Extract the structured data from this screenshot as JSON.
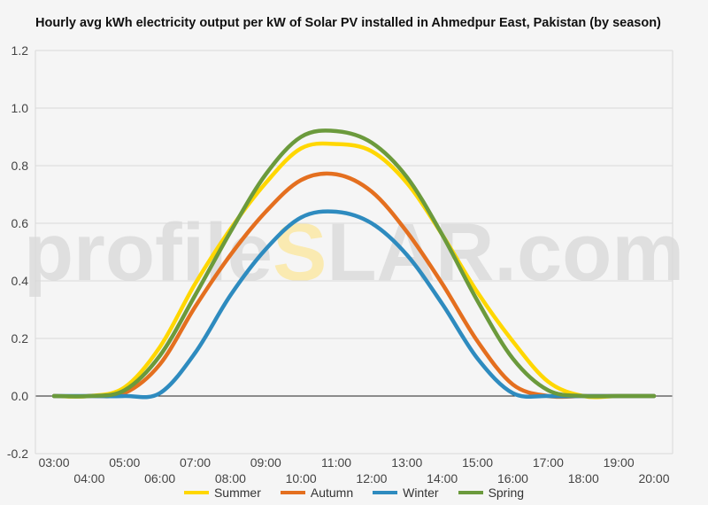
{
  "watermark": {
    "left": "profile",
    "sun_letter": "S",
    "right": "LAR.com"
  },
  "chart_data": {
    "type": "line",
    "title": "Hourly avg kWh electricity output per kW of Solar PV installed in Ahmedpur East, Pakistan (by season)",
    "xlabel": "",
    "ylabel": "",
    "ylim": [
      -0.2,
      1.2
    ],
    "yticks": [
      "-0.2",
      "0.0",
      "0.2",
      "0.4",
      "0.6",
      "0.8",
      "1.0",
      "1.2"
    ],
    "categories": [
      "03:00",
      "04:00",
      "05:00",
      "06:00",
      "07:00",
      "08:00",
      "09:00",
      "10:00",
      "11:00",
      "12:00",
      "13:00",
      "14:00",
      "15:00",
      "16:00",
      "17:00",
      "18:00",
      "19:00",
      "20:00"
    ],
    "grid": true,
    "legend_position": "bottom",
    "series": [
      {
        "name": "Summer",
        "color": "#FFD700",
        "values": [
          0,
          0,
          0.03,
          0.17,
          0.39,
          0.58,
          0.74,
          0.86,
          0.875,
          0.85,
          0.74,
          0.56,
          0.36,
          0.19,
          0.05,
          0,
          0,
          0
        ]
      },
      {
        "name": "Autumn",
        "color": "#E46F1F",
        "values": [
          0,
          0,
          0.01,
          0.11,
          0.31,
          0.49,
          0.64,
          0.75,
          0.77,
          0.71,
          0.57,
          0.39,
          0.19,
          0.04,
          0,
          0,
          0,
          0
        ]
      },
      {
        "name": "Winter",
        "color": "#2E8BBF",
        "values": [
          0,
          0,
          0,
          0.01,
          0.15,
          0.35,
          0.51,
          0.62,
          0.64,
          0.6,
          0.49,
          0.32,
          0.13,
          0.01,
          0,
          0,
          0,
          0
        ]
      },
      {
        "name": "Spring",
        "color": "#6B9A3C",
        "values": [
          0,
          0,
          0.02,
          0.14,
          0.35,
          0.57,
          0.77,
          0.9,
          0.92,
          0.88,
          0.76,
          0.56,
          0.33,
          0.13,
          0.02,
          0,
          0,
          0
        ]
      }
    ]
  }
}
